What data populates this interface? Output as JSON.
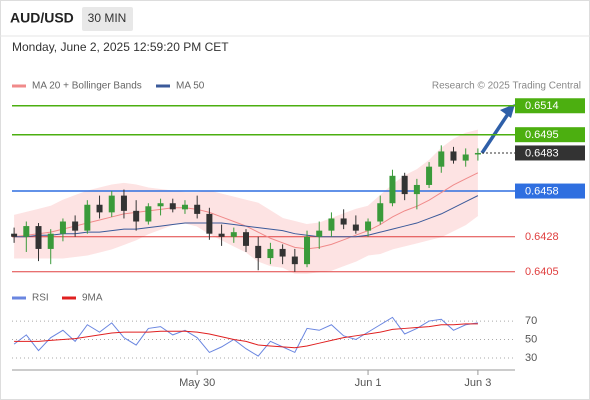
{
  "header": {
    "symbol": "AUD/USD",
    "interval": "30 MIN",
    "timestamp": "Monday, June 2, 2025 12:59:20 PM CET"
  },
  "chart_data": [
    {
      "type": "candlestick",
      "credit": "Research © 2025 Trading Central",
      "xlim": [
        -0.5,
        38.5
      ],
      "ylim": [
        0.6395,
        0.6525
      ],
      "up_color": "#3a9a3a",
      "down_color": "#333333",
      "ohlc": {
        "open": [
          0.643,
          0.6428,
          0.6435,
          0.642,
          0.643,
          0.6438,
          0.6432,
          0.6449,
          0.6444,
          0.6455,
          0.6445,
          0.6438,
          0.6448,
          0.645,
          0.6446,
          0.6449,
          0.6443,
          0.643,
          0.6428,
          0.6431,
          0.6422,
          0.6414,
          0.642,
          0.6415,
          0.641,
          0.6428,
          0.6432,
          0.644,
          0.6436,
          0.6432,
          0.6438,
          0.645,
          0.6468,
          0.6456,
          0.6462,
          0.6474,
          0.6484,
          0.6478,
          0.6482
        ],
        "high": [
          0.6434,
          0.6438,
          0.6437,
          0.6433,
          0.644,
          0.6442,
          0.6452,
          0.6455,
          0.6458,
          0.6459,
          0.6452,
          0.645,
          0.6453,
          0.6453,
          0.6452,
          0.6455,
          0.6447,
          0.6436,
          0.6434,
          0.6433,
          0.6428,
          0.6424,
          0.6423,
          0.642,
          0.6432,
          0.6438,
          0.6444,
          0.6446,
          0.6442,
          0.644,
          0.6455,
          0.6472,
          0.647,
          0.6466,
          0.6477,
          0.6488,
          0.6487,
          0.6486,
          0.6486
        ],
        "low": [
          0.6424,
          0.6418,
          0.6412,
          0.641,
          0.6425,
          0.6428,
          0.643,
          0.644,
          0.6441,
          0.644,
          0.6432,
          0.6436,
          0.6442,
          0.6444,
          0.6443,
          0.644,
          0.6426,
          0.6422,
          0.6424,
          0.6418,
          0.6406,
          0.641,
          0.641,
          0.6405,
          0.6408,
          0.642,
          0.6428,
          0.6433,
          0.643,
          0.6428,
          0.6436,
          0.6448,
          0.6452,
          0.6446,
          0.646,
          0.647,
          0.6476,
          0.6474,
          0.6478
        ],
        "close": [
          0.6428,
          0.6435,
          0.642,
          0.643,
          0.6438,
          0.6432,
          0.6449,
          0.6444,
          0.6455,
          0.6445,
          0.6438,
          0.6448,
          0.645,
          0.6446,
          0.6449,
          0.6443,
          0.643,
          0.6428,
          0.6431,
          0.6422,
          0.6414,
          0.642,
          0.6415,
          0.641,
          0.6428,
          0.6432,
          0.644,
          0.6436,
          0.6432,
          0.6438,
          0.645,
          0.6468,
          0.6456,
          0.6462,
          0.6474,
          0.6484,
          0.6478,
          0.6482,
          0.6483
        ]
      },
      "series": [
        {
          "name": "MA 20 + Bollinger Bands",
          "color": "#f08a8a",
          "band_color": "#fde3e3",
          "values": [
            0.6428,
            0.6429,
            0.643,
            0.6431,
            0.6433,
            0.6435,
            0.6437,
            0.6439,
            0.6441,
            0.6443,
            0.6444,
            0.6445,
            0.6446,
            0.6447,
            0.6447,
            0.6446,
            0.6444,
            0.6441,
            0.6438,
            0.6435,
            0.6431,
            0.6427,
            0.6424,
            0.6421,
            0.642,
            0.6421,
            0.6423,
            0.6426,
            0.6429,
            0.6432,
            0.6436,
            0.6441,
            0.6445,
            0.6448,
            0.6452,
            0.6457,
            0.6462,
            0.6466,
            0.647
          ],
          "band_upper": [
            0.6442,
            0.6444,
            0.6446,
            0.6448,
            0.6452,
            0.6455,
            0.6458,
            0.646,
            0.6462,
            0.6463,
            0.6462,
            0.646,
            0.6459,
            0.6458,
            0.6457,
            0.6457,
            0.6458,
            0.6456,
            0.6454,
            0.6452,
            0.645,
            0.6445,
            0.644,
            0.6438,
            0.6436,
            0.6437,
            0.644,
            0.6443,
            0.6446,
            0.6448,
            0.6455,
            0.6462,
            0.6468,
            0.6472,
            0.6478,
            0.6486,
            0.6492,
            0.6496,
            0.6498
          ],
          "band_lower": [
            0.6414,
            0.6414,
            0.6414,
            0.6414,
            0.6414,
            0.6415,
            0.6416,
            0.6418,
            0.642,
            0.6423,
            0.6426,
            0.643,
            0.6433,
            0.6436,
            0.6437,
            0.6435,
            0.643,
            0.6426,
            0.6422,
            0.6418,
            0.6412,
            0.6409,
            0.6408,
            0.6404,
            0.6404,
            0.6405,
            0.6406,
            0.6409,
            0.6412,
            0.6416,
            0.6417,
            0.642,
            0.6422,
            0.6424,
            0.6426,
            0.6428,
            0.6432,
            0.6436,
            0.6442
          ]
        },
        {
          "name": "MA 50",
          "color": "#3b5a9a",
          "values": [
            0.6428,
            0.6428,
            0.6429,
            0.6429,
            0.643,
            0.643,
            0.6431,
            0.6431,
            0.6432,
            0.6433,
            0.6433,
            0.6434,
            0.6435,
            0.6436,
            0.6437,
            0.6437,
            0.6437,
            0.6437,
            0.6436,
            0.6435,
            0.6434,
            0.6433,
            0.6432,
            0.643,
            0.6429,
            0.6428,
            0.6428,
            0.6428,
            0.6428,
            0.6429,
            0.6431,
            0.6433,
            0.6435,
            0.6437,
            0.644,
            0.6443,
            0.6447,
            0.6451,
            0.6455
          ]
        }
      ],
      "levels": [
        {
          "value": 0.6514,
          "color": "#4caf10",
          "line": "solid",
          "label_style": "box"
        },
        {
          "value": 0.6495,
          "color": "#4caf10",
          "line": "solid",
          "label_style": "box"
        },
        {
          "value": 0.6483,
          "color": "#333333",
          "line": "dotted",
          "label_style": "box"
        },
        {
          "value": 0.6458,
          "color": "#2f6fe0",
          "line": "solid",
          "label_style": "box"
        },
        {
          "value": 0.6428,
          "color": "#e04040",
          "line": "solid",
          "label_style": "text"
        },
        {
          "value": 0.6405,
          "color": "#e04040",
          "line": "solid",
          "label_style": "text"
        }
      ]
    },
    {
      "type": "line",
      "xlim": [
        -0.5,
        38.5
      ],
      "xticks": [
        {
          "value": 15,
          "label": "May 30"
        },
        {
          "value": 29,
          "label": "Jun 1"
        },
        {
          "value": 38,
          "label": "Jun 3"
        }
      ],
      "ylim": [
        18,
        82
      ],
      "yticks": [
        70,
        50,
        30
      ],
      "grid": true,
      "series": [
        {
          "name": "RSI",
          "color": "#6a86e0",
          "values": [
            45,
            55,
            38,
            52,
            60,
            48,
            66,
            58,
            68,
            52,
            44,
            62,
            64,
            55,
            60,
            52,
            36,
            42,
            50,
            40,
            32,
            48,
            42,
            36,
            62,
            60,
            66,
            54,
            50,
            58,
            66,
            74,
            56,
            62,
            70,
            72,
            60,
            66,
            68
          ]
        },
        {
          "name": "9MA",
          "color": "#e02020",
          "values": [
            48,
            48,
            48,
            49,
            50,
            51,
            53,
            55,
            57,
            58,
            58,
            58,
            59,
            59,
            59,
            58,
            56,
            53,
            50,
            48,
            44,
            43,
            42,
            41,
            43,
            46,
            49,
            52,
            54,
            56,
            58,
            61,
            62,
            63,
            64,
            66,
            66,
            67,
            67
          ]
        }
      ]
    }
  ]
}
